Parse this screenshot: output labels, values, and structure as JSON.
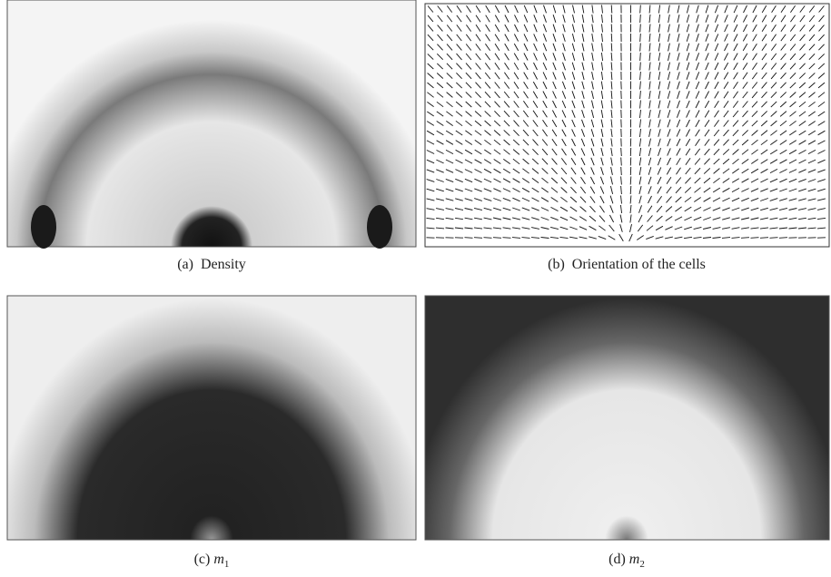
{
  "panels": [
    {
      "label": "(a)",
      "text": "Density"
    },
    {
      "label": "(b)",
      "text": "Orientation of the cells"
    },
    {
      "label": "(c)",
      "symbol": "m",
      "subscript": "1"
    },
    {
      "label": "(d)",
      "symbol": "m",
      "subscript": "2"
    }
  ]
}
